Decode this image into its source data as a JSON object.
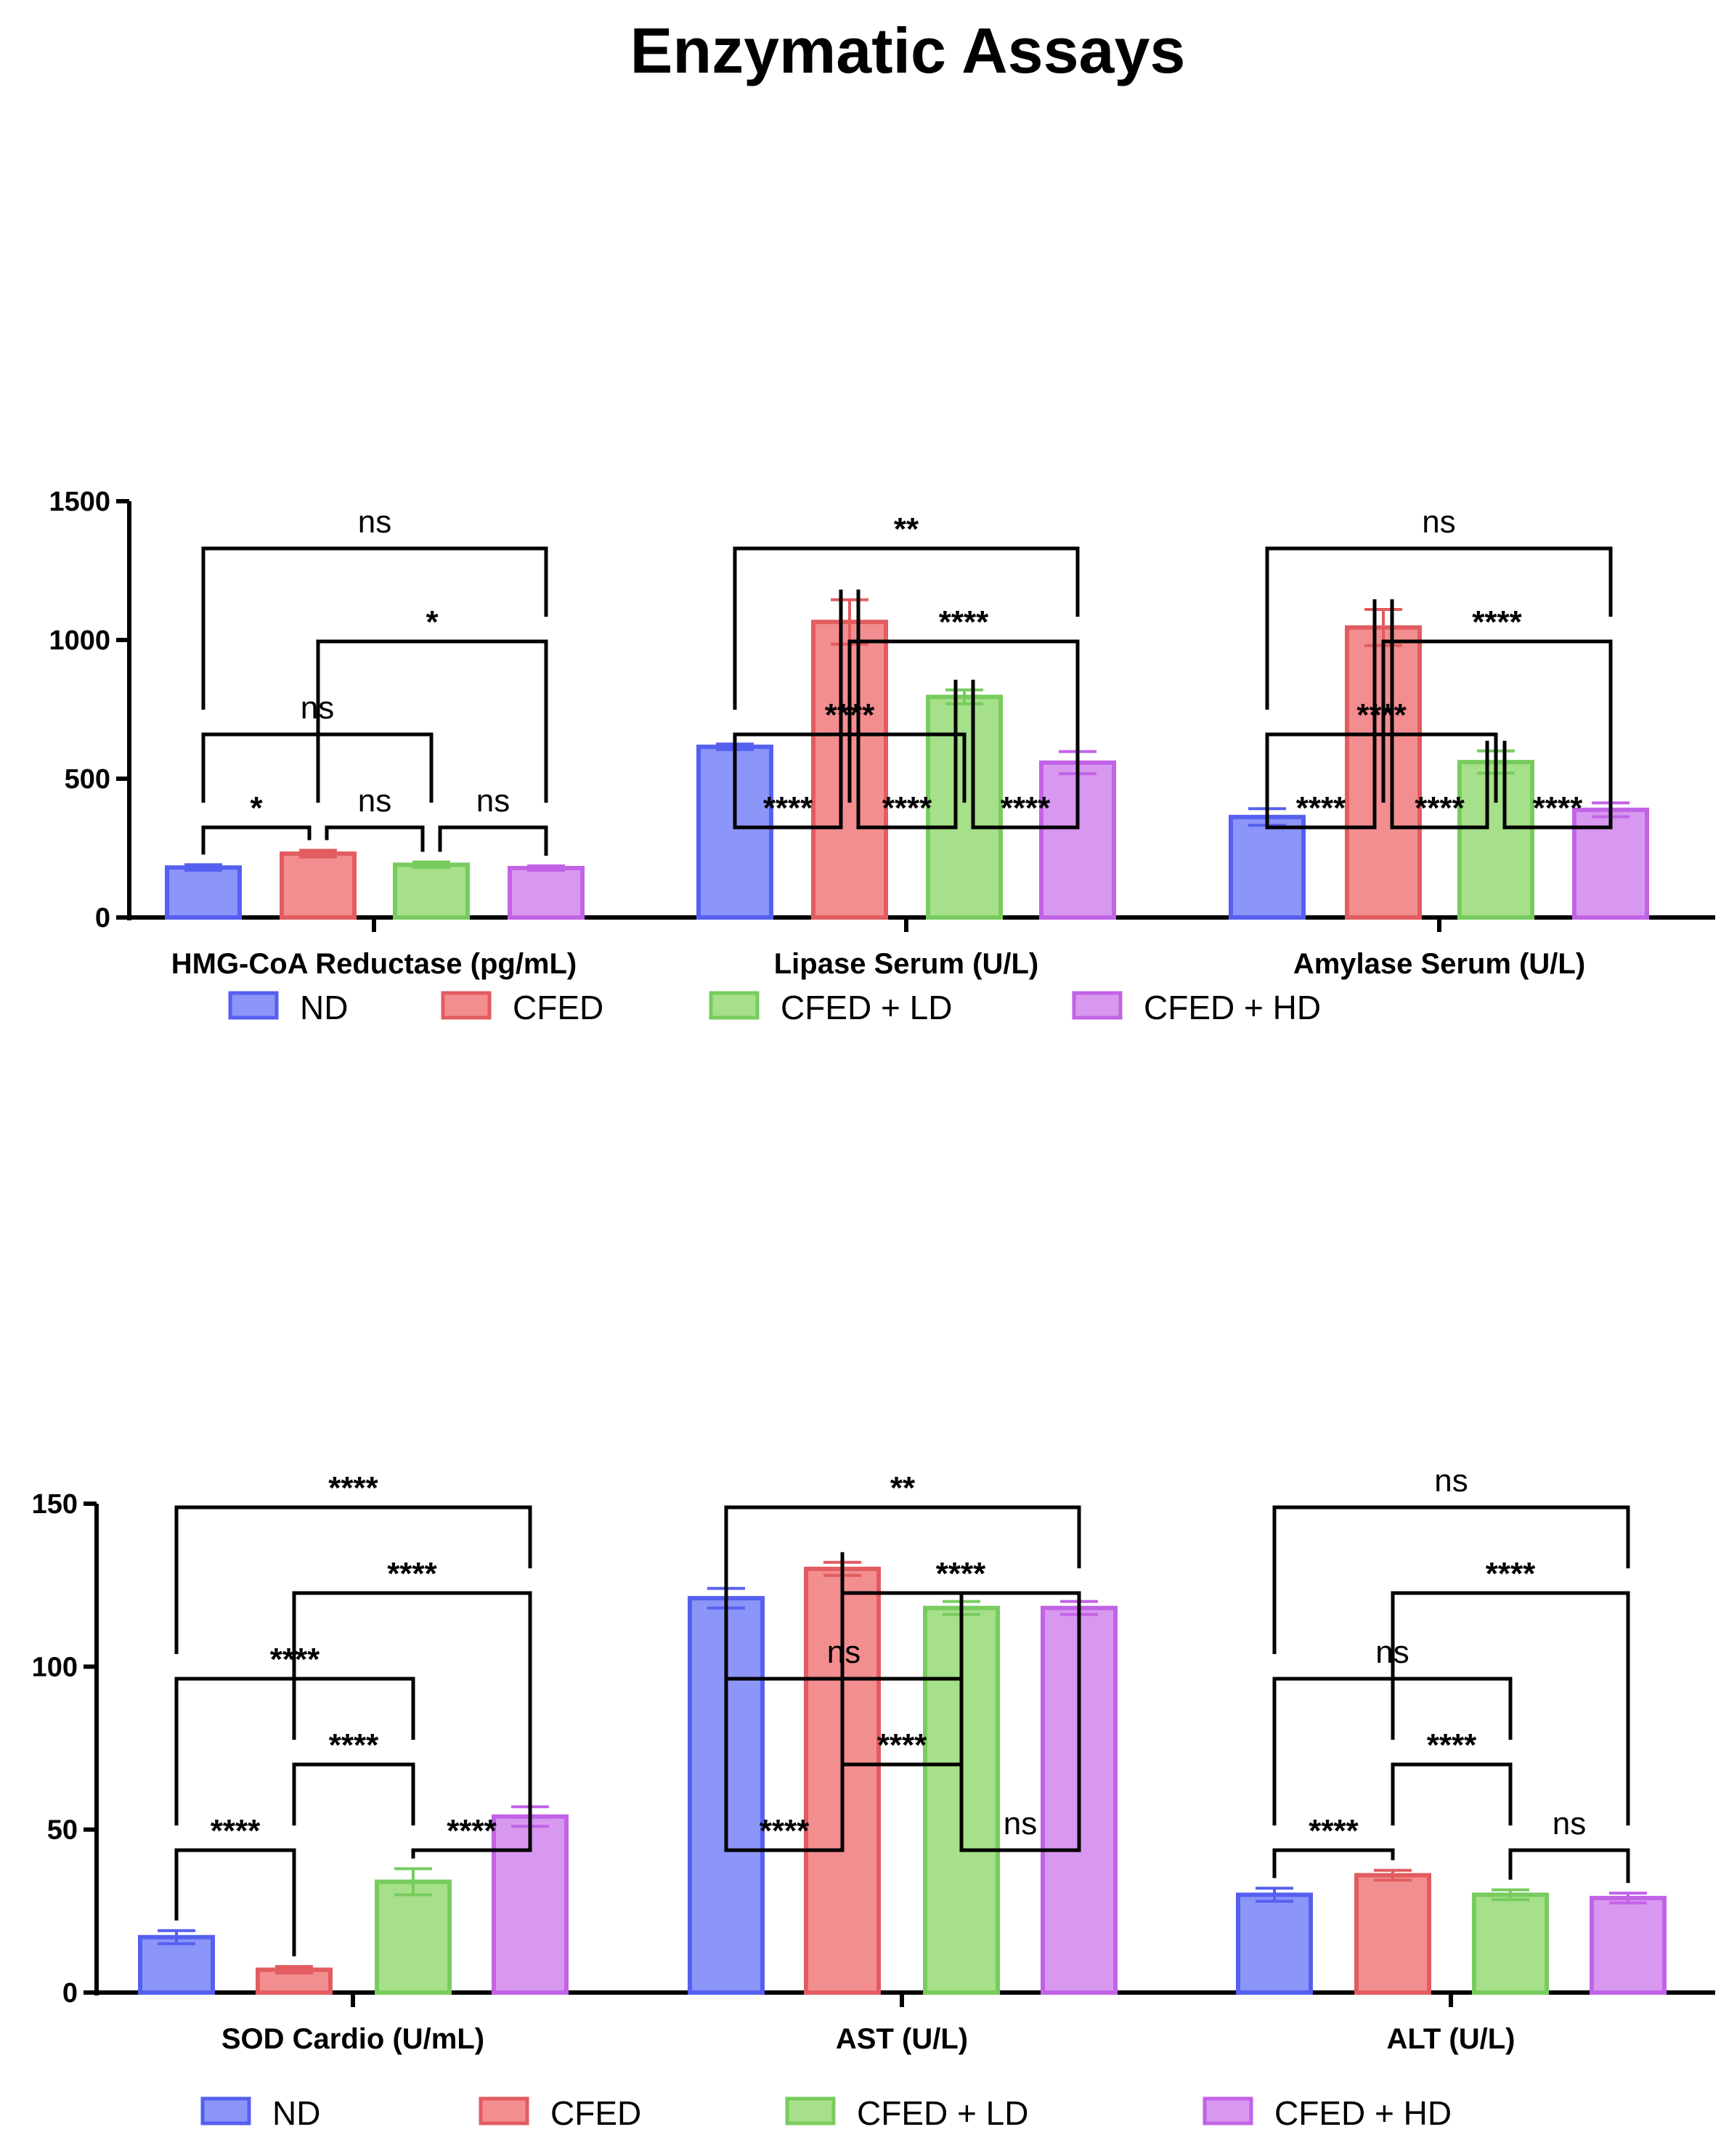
{
  "figure_title": "Enzymatic Assays",
  "legend": [
    {
      "name": "ND",
      "fill": "#8c95f8",
      "stroke": "#5560f0"
    },
    {
      "name": "CFED",
      "fill": "#f38e90",
      "stroke": "#e25c60"
    },
    {
      "name": "CFED + LD",
      "fill": "#a6e08a",
      "stroke": "#78cc5e"
    },
    {
      "name": "CFED + HD",
      "fill": "#d898ef",
      "stroke": "#c263e6"
    }
  ],
  "chart_data": [
    {
      "type": "bar",
      "panel": "top",
      "ylim": [
        0,
        1500
      ],
      "yticks": [
        0,
        500,
        1000,
        1500
      ],
      "series_names": [
        "ND",
        "CFED",
        "CFED + LD",
        "CFED + HD"
      ],
      "groups": [
        {
          "label": "HMG-CoA Reductase (pg/mL)",
          "values": [
            180,
            230,
            190,
            178
          ],
          "errors": [
            10,
            12,
            10,
            8
          ],
          "comparisons": [
            {
              "pair": [
                1,
                2
              ],
              "label": "*",
              "tier": 1
            },
            {
              "pair": [
                2,
                3
              ],
              "label": "ns",
              "tier": 1
            },
            {
              "pair": [
                3,
                4
              ],
              "label": "ns",
              "tier": 1
            },
            {
              "pair": [
                1,
                3
              ],
              "label": "ns",
              "tier": 2
            },
            {
              "pair": [
                2,
                4
              ],
              "label": "*",
              "tier": 3
            },
            {
              "pair": [
                1,
                4
              ],
              "label": "ns",
              "tier": 4
            }
          ]
        },
        {
          "label": "Lipase Serum (U/L)",
          "values": [
            615,
            1065,
            795,
            558
          ],
          "errors": [
            10,
            80,
            25,
            40
          ],
          "comparisons": [
            {
              "pair": [
                1,
                2
              ],
              "label": "****",
              "tier": 1
            },
            {
              "pair": [
                2,
                3
              ],
              "label": "****",
              "tier": 1
            },
            {
              "pair": [
                3,
                4
              ],
              "label": "****",
              "tier": 1
            },
            {
              "pair": [
                1,
                3
              ],
              "label": "****",
              "tier": 2
            },
            {
              "pair": [
                2,
                4
              ],
              "label": "****",
              "tier": 3
            },
            {
              "pair": [
                1,
                4
              ],
              "label": "**",
              "tier": 4
            }
          ]
        },
        {
          "label": "Amylase Serum (U/L)",
          "values": [
            362,
            1045,
            560,
            388
          ],
          "errors": [
            30,
            65,
            40,
            25
          ],
          "comparisons": [
            {
              "pair": [
                1,
                2
              ],
              "label": "****",
              "tier": 1
            },
            {
              "pair": [
                2,
                3
              ],
              "label": "****",
              "tier": 1
            },
            {
              "pair": [
                3,
                4
              ],
              "label": "****",
              "tier": 1
            },
            {
              "pair": [
                1,
                3
              ],
              "label": "****",
              "tier": 2
            },
            {
              "pair": [
                2,
                4
              ],
              "label": "****",
              "tier": 3
            },
            {
              "pair": [
                1,
                4
              ],
              "label": "ns",
              "tier": 4
            }
          ]
        }
      ]
    },
    {
      "type": "bar",
      "panel": "bottom",
      "ylim": [
        0,
        150
      ],
      "yticks": [
        0,
        50,
        100,
        150
      ],
      "series_names": [
        "ND",
        "CFED",
        "CFED + LD",
        "CFED + HD"
      ],
      "groups": [
        {
          "label": "SOD Cardio (U/mL)",
          "values": [
            17,
            7,
            34,
            54
          ],
          "errors": [
            2,
            1,
            4,
            3
          ],
          "comparisons": [
            {
              "pair": [
                1,
                2
              ],
              "label": "****",
              "tier": 1
            },
            {
              "pair": [
                3,
                4
              ],
              "label": "****",
              "tier": 1
            },
            {
              "pair": [
                2,
                3
              ],
              "label": "****",
              "tier": 2
            },
            {
              "pair": [
                1,
                3
              ],
              "label": "****",
              "tier": 3
            },
            {
              "pair": [
                2,
                4
              ],
              "label": "****",
              "tier": 4
            },
            {
              "pair": [
                1,
                4
              ],
              "label": "****",
              "tier": 5
            }
          ]
        },
        {
          "label": "AST (U/L)",
          "values": [
            121,
            130,
            118,
            118
          ],
          "errors": [
            3,
            2,
            2,
            2
          ],
          "comparisons": [
            {
              "pair": [
                1,
                2
              ],
              "label": "****",
              "tier": 1
            },
            {
              "pair": [
                3,
                4
              ],
              "label": "ns",
              "tier": 1
            },
            {
              "pair": [
                2,
                3
              ],
              "label": "****",
              "tier": 2
            },
            {
              "pair": [
                1,
                3
              ],
              "label": "ns",
              "tier": 3
            },
            {
              "pair": [
                2,
                4
              ],
              "label": "****",
              "tier": 4
            },
            {
              "pair": [
                1,
                4
              ],
              "label": "**",
              "tier": 5
            }
          ]
        },
        {
          "label": "ALT (U/L)",
          "values": [
            30,
            36,
            30,
            29
          ],
          "errors": [
            2,
            1.5,
            1.5,
            1.5
          ],
          "comparisons": [
            {
              "pair": [
                1,
                2
              ],
              "label": "****",
              "tier": 1
            },
            {
              "pair": [
                3,
                4
              ],
              "label": "ns",
              "tier": 1
            },
            {
              "pair": [
                2,
                3
              ],
              "label": "****",
              "tier": 2
            },
            {
              "pair": [
                1,
                3
              ],
              "label": "ns",
              "tier": 3
            },
            {
              "pair": [
                2,
                4
              ],
              "label": "****",
              "tier": 4
            },
            {
              "pair": [
                1,
                4
              ],
              "label": "ns",
              "tier": 5
            }
          ]
        }
      ]
    }
  ]
}
